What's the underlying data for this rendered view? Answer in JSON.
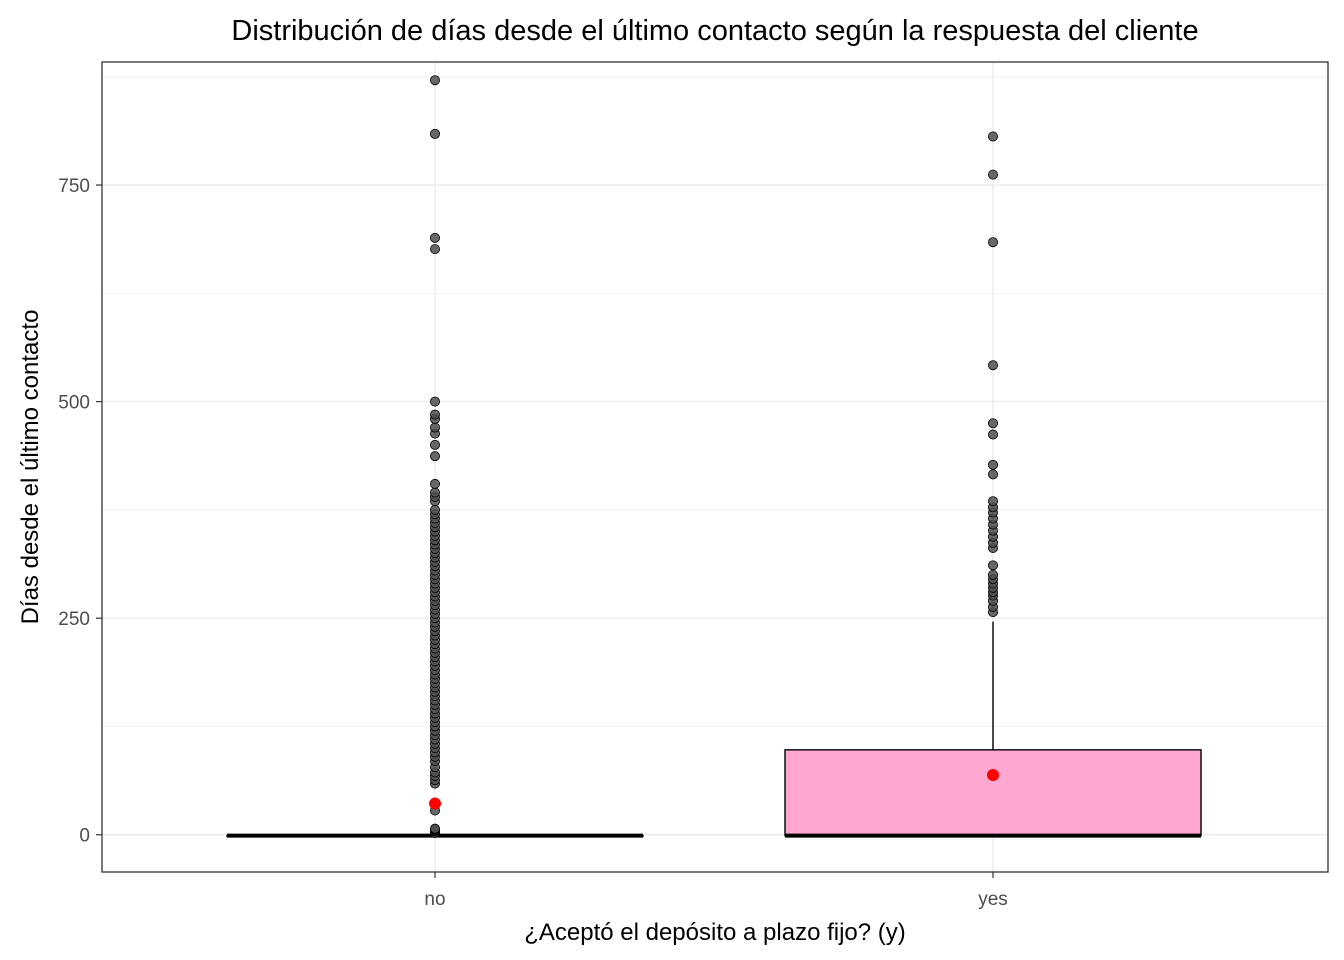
{
  "chart_data": {
    "type": "box",
    "title": "Distribución de días desde el último contacto según la respuesta del cliente",
    "xlabel": "¿Aceptó el depósito a plazo fijo? (y)",
    "ylabel": "Días desde el último contacto",
    "categories": [
      "no",
      "yes"
    ],
    "ylim": [
      -43,
      892
    ],
    "yticks": [
      0,
      250,
      500,
      750
    ],
    "grid": true,
    "legend": "none",
    "colors": {
      "box_fill": "#ffa6d1",
      "mean_marker": "#ff0000",
      "outlier": "#4d4d4d",
      "grid": "#ebebeb",
      "panel_border": "#333333"
    },
    "boxes": [
      {
        "category": "no",
        "min": -1,
        "q1": -1,
        "median": -1,
        "q3": -1,
        "max": -1,
        "mean": 36,
        "outliers": [
          2,
          4,
          5,
          6,
          7,
          28,
          36,
          59,
          63,
          68,
          72,
          78,
          85,
          90,
          95,
          100,
          105,
          110,
          115,
          120,
          125,
          130,
          135,
          140,
          145,
          150,
          155,
          160,
          165,
          170,
          175,
          180,
          185,
          190,
          195,
          200,
          205,
          210,
          215,
          220,
          225,
          230,
          235,
          240,
          245,
          250,
          255,
          260,
          265,
          270,
          275,
          280,
          285,
          290,
          295,
          300,
          305,
          310,
          315,
          320,
          325,
          330,
          335,
          340,
          345,
          350,
          355,
          360,
          365,
          370,
          375,
          385,
          390,
          395,
          405,
          437,
          450,
          463,
          470,
          480,
          485,
          500,
          676,
          689,
          809,
          871
        ]
      },
      {
        "category": "yes",
        "min": -1,
        "q1": -1,
        "median": -1,
        "q3": 98,
        "max": 246,
        "mean": 69,
        "outliers": [
          257,
          263,
          270,
          276,
          280,
          285,
          290,
          295,
          300,
          311,
          331,
          337,
          344,
          351,
          358,
          365,
          372,
          378,
          385,
          416,
          427,
          462,
          475,
          542,
          684,
          762,
          806
        ]
      }
    ]
  }
}
